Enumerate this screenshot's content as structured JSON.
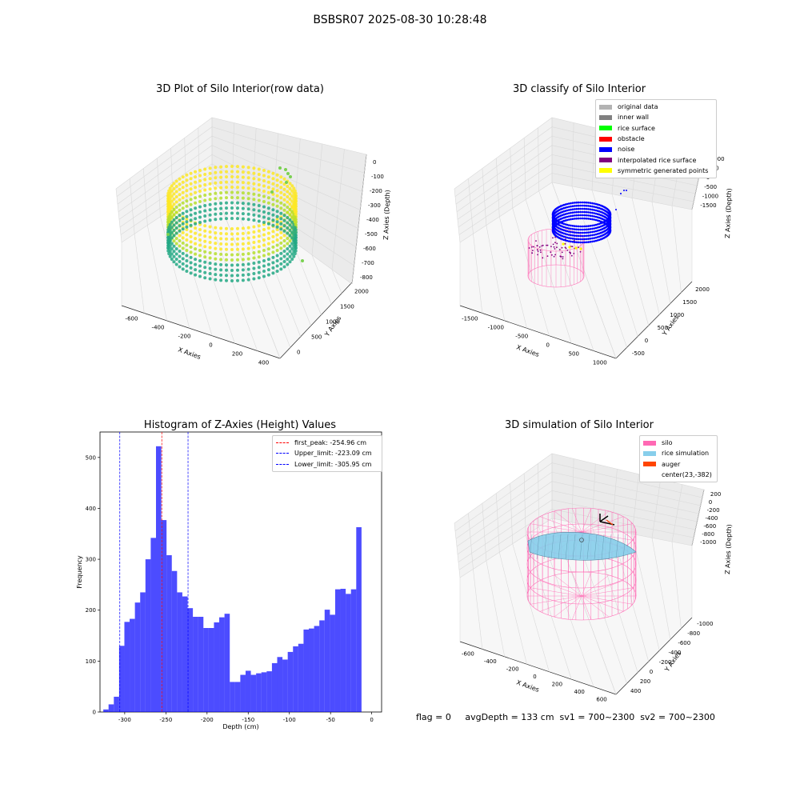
{
  "figure": {
    "suptitle": "BSBSR07 2025-08-30 10:28:48",
    "status_line": "flag = 0     avgDepth = 133 cm  sv1 = 700~2300  sv2 = 700~2300"
  },
  "colors": {
    "viridis_teal": "#22a884",
    "viridis_yellow": "#fde725",
    "silo_pink": "#ff69b4",
    "rice_sky": "#87ceeb",
    "auger_orange": "#ff4500",
    "hist_blue": "#0000ff",
    "peak_red": "#ff0000",
    "limit_blue": "#0000ff"
  },
  "chart_data": [
    {
      "type": "scatter",
      "subtype": "3d-scatter",
      "title": "3D Plot of Silo Interior(row data)",
      "xlabel": "X Axies",
      "ylabel": "Y Axies",
      "zlabel": "Z Axies (Depth)",
      "x_ticks": [
        "-600",
        "-400",
        "-200",
        "0",
        "200",
        "400"
      ],
      "y_ticks": [
        "0",
        "500",
        "1000",
        "1500",
        "2000"
      ],
      "z_ticks": [
        "0",
        "-100",
        "-200",
        "-300",
        "-400",
        "-500",
        "-600",
        "-700",
        "-800"
      ],
      "colormap": "viridis",
      "grid": true
    },
    {
      "type": "scatter",
      "subtype": "3d-scatter",
      "title": "3D classify of Silo Interior",
      "xlabel": "X Axies",
      "ylabel": "Y Axies",
      "zlabel": "Z Axies (Depth)",
      "x_ticks": [
        "-1500",
        "-1000",
        "-500",
        "0",
        "500",
        "1000"
      ],
      "y_ticks": [
        "-500",
        "0",
        "500",
        "1000",
        "1500",
        "2000"
      ],
      "z_ticks": [
        "1000",
        "500",
        "0",
        "-500",
        "-1000",
        "-1500"
      ],
      "legend_position": "top-right",
      "legend": [
        {
          "label": "original data",
          "color": "#b3b3b3"
        },
        {
          "label": "inner wall",
          "color": "#808080"
        },
        {
          "label": "rice surface",
          "color": "#00ff00"
        },
        {
          "label": "obstacle",
          "color": "#ff0000"
        },
        {
          "label": "noise",
          "color": "#0000ff"
        },
        {
          "label": "interpolated rice surface",
          "color": "#800080"
        },
        {
          "label": "symmetric generated points",
          "color": "#ffff00"
        }
      ],
      "grid": true
    },
    {
      "type": "bar",
      "subtype": "histogram",
      "title": "Histogram of Z-Axies (Height) Values",
      "xlabel": "Depth (cm)",
      "ylabel": "Frequency",
      "xlim": [
        -330,
        12
      ],
      "ylim": [
        0,
        550
      ],
      "x_ticks": [
        -300,
        -250,
        -200,
        -150,
        -100,
        -50,
        0
      ],
      "y_ticks": [
        0,
        100,
        200,
        300,
        400,
        500
      ],
      "bin_width": 6.4,
      "bin_start": -326,
      "values": [
        5,
        15,
        30,
        130,
        177,
        183,
        215,
        235,
        300,
        342,
        522,
        377,
        308,
        277,
        235,
        227,
        204,
        187,
        187,
        165,
        165,
        176,
        186,
        193,
        59,
        59,
        73,
        81,
        73,
        76,
        78,
        80,
        96,
        108,
        103,
        118,
        129,
        134,
        162,
        164,
        169,
        180,
        201,
        191,
        241,
        242,
        232,
        241,
        363
      ],
      "vlines": [
        {
          "label": "first_peak: -254.96 cm",
          "value": -254.96,
          "color": "#ff0000"
        },
        {
          "label": "Upper_limit: -223.09 cm",
          "value": -223.09,
          "color": "#0000ff"
        },
        {
          "label": "Lower_limit: -305.95 cm",
          "value": -305.95,
          "color": "#0000ff"
        }
      ],
      "legend_position": "top-right",
      "grid": false
    },
    {
      "type": "scatter",
      "subtype": "3d-surface",
      "title": "3D simulation of Silo Interior",
      "xlabel": "X Axies",
      "ylabel": "Y Axies",
      "zlabel": "Z Axies (Depth)",
      "x_ticks": [
        "-600",
        "-400",
        "-200",
        "0",
        "200",
        "400",
        "600"
      ],
      "y_ticks": [
        "400",
        "200",
        "0",
        "-200",
        "-400",
        "-600",
        "-800",
        "-1000"
      ],
      "z_ticks": [
        "200",
        "0",
        "-200",
        "-400",
        "-600",
        "-800",
        "-1000"
      ],
      "legend_position": "top-right",
      "legend": [
        {
          "label": "silo",
          "color": "#ff69b4"
        },
        {
          "label": "rice simulation",
          "color": "#87ceeb"
        },
        {
          "label": "auger",
          "color": "#ff4500"
        },
        {
          "label": "center(23,-382)",
          "color": ""
        }
      ],
      "grid": true
    }
  ]
}
